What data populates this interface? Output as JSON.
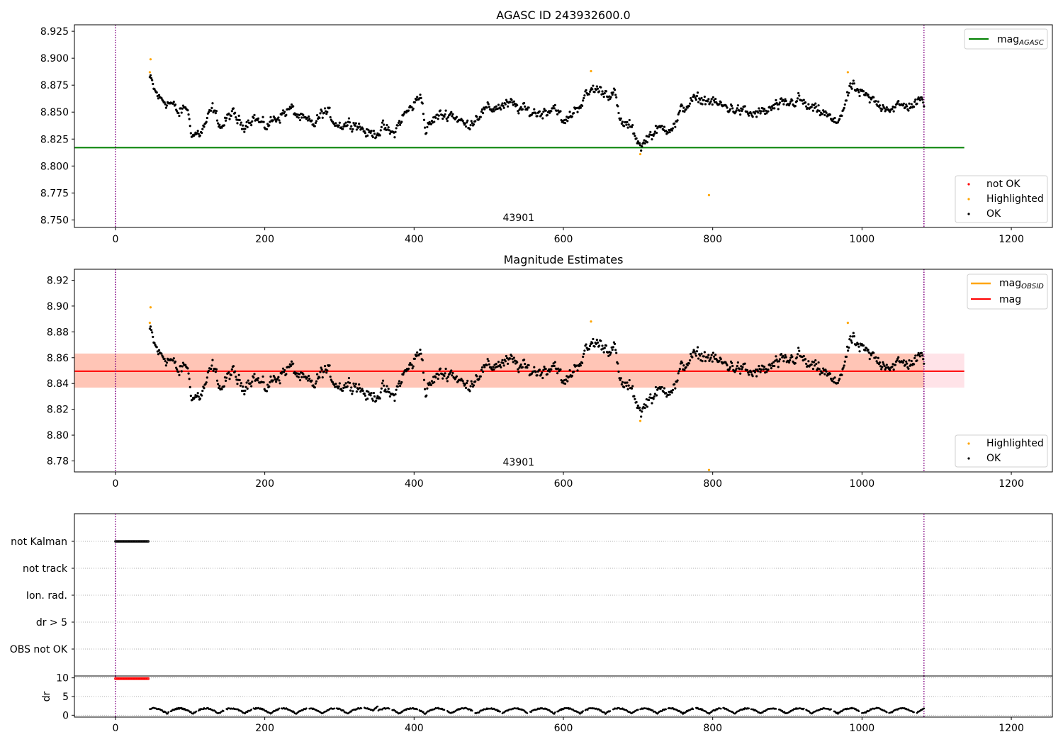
{
  "chart_data": [
    {
      "type": "scatter",
      "title": "AGASC ID 243932600.0",
      "xlim": [
        -55,
        1255
      ],
      "ylim": [
        8.743,
        8.931
      ],
      "x_ticks": [
        "0",
        "200",
        "400",
        "600",
        "800",
        "1000",
        "1200"
      ],
      "y_ticks": [
        "8.750",
        "8.775",
        "8.800",
        "8.825",
        "8.850",
        "8.875",
        "8.900",
        "8.925"
      ],
      "obsid_label": "43901",
      "obsid_x": 540,
      "vlines_x": [
        0,
        1083
      ],
      "mag_agasc": 8.817,
      "mag_agasc_xrange": [
        -55,
        1137
      ],
      "legend_upper": [
        "mag",
        "AGASC"
      ],
      "legend_lower": [
        "not OK",
        "Highlighted",
        "OK"
      ],
      "highlighted": [
        [
          46,
          8.887
        ],
        [
          47,
          8.899
        ],
        [
          637,
          8.888
        ],
        [
          703,
          8.811
        ],
        [
          795,
          8.773
        ],
        [
          981,
          8.887
        ]
      ],
      "ok_series": {
        "x_range": [
          46,
          1083
        ],
        "n": 1000,
        "segments": [
          [
            46,
            8.882
          ],
          [
            52,
            8.87
          ],
          [
            60,
            8.862
          ],
          [
            75,
            8.858
          ],
          [
            85,
            8.848
          ],
          [
            95,
            8.856
          ],
          [
            103,
            8.829
          ],
          [
            115,
            8.831
          ],
          [
            130,
            8.853
          ],
          [
            142,
            8.836
          ],
          [
            155,
            8.849
          ],
          [
            170,
            8.838
          ],
          [
            185,
            8.846
          ],
          [
            200,
            8.836
          ],
          [
            215,
            8.845
          ],
          [
            235,
            8.853
          ],
          [
            250,
            8.843
          ],
          [
            265,
            8.838
          ],
          [
            280,
            8.851
          ],
          [
            300,
            8.838
          ],
          [
            320,
            8.841
          ],
          [
            340,
            8.829
          ],
          [
            360,
            8.835
          ],
          [
            372,
            8.829
          ],
          [
            385,
            8.846
          ],
          [
            400,
            8.857
          ],
          [
            410,
            8.868
          ],
          [
            415,
            8.832
          ],
          [
            430,
            8.846
          ],
          [
            450,
            8.849
          ],
          [
            470,
            8.837
          ],
          [
            490,
            8.85
          ],
          [
            510,
            8.855
          ],
          [
            530,
            8.857
          ],
          [
            550,
            8.851
          ],
          [
            570,
            8.849
          ],
          [
            590,
            8.856
          ],
          [
            600,
            8.838
          ],
          [
            615,
            8.852
          ],
          [
            630,
            8.864
          ],
          [
            640,
            8.872
          ],
          [
            655,
            8.869
          ],
          [
            670,
            8.866
          ],
          [
            675,
            8.841
          ],
          [
            690,
            8.836
          ],
          [
            705,
            8.818
          ],
          [
            715,
            8.829
          ],
          [
            730,
            8.834
          ],
          [
            750,
            8.838
          ],
          [
            757,
            8.85
          ],
          [
            770,
            8.86
          ],
          [
            790,
            8.862
          ],
          [
            810,
            8.856
          ],
          [
            830,
            8.853
          ],
          [
            850,
            8.848
          ],
          [
            870,
            8.85
          ],
          [
            885,
            8.855
          ],
          [
            900,
            8.857
          ],
          [
            915,
            8.862
          ],
          [
            930,
            8.853
          ],
          [
            950,
            8.849
          ],
          [
            965,
            8.838
          ],
          [
            980,
            8.862
          ],
          [
            985,
            8.874
          ],
          [
            1000,
            8.866
          ],
          [
            1020,
            8.858
          ],
          [
            1040,
            8.854
          ],
          [
            1060,
            8.856
          ],
          [
            1083,
            8.86
          ]
        ]
      }
    },
    {
      "type": "scatter",
      "title": "Magnitude Estimates",
      "xlim": [
        -55,
        1255
      ],
      "ylim": [
        8.7715,
        8.9285
      ],
      "x_ticks": [
        "0",
        "200",
        "400",
        "600",
        "800",
        "1000",
        "1200"
      ],
      "y_ticks": [
        "8.78",
        "8.80",
        "8.82",
        "8.84",
        "8.86",
        "8.88",
        "8.90",
        "8.92"
      ],
      "obsid_label": "43901",
      "obsid_x": 540,
      "vlines_x": [
        0,
        1083
      ],
      "mag": 8.8495,
      "mag_band": [
        8.8368,
        8.8632
      ],
      "mag_obsid": 8.8495,
      "band_xrange": [
        -55,
        1137
      ],
      "obsid_xrange": [
        -55,
        1083
      ],
      "legend_upper": [
        [
          "mag",
          "OBSID"
        ],
        [
          "mag",
          ""
        ]
      ],
      "legend_lower": [
        "Highlighted",
        "OK"
      ],
      "highlighted": [
        [
          46,
          8.887
        ],
        [
          47,
          8.899
        ],
        [
          637,
          8.888
        ],
        [
          703,
          8.811
        ],
        [
          795,
          8.773
        ],
        [
          981,
          8.887
        ]
      ]
    },
    {
      "type": "scatter",
      "title": "",
      "xlim": [
        -55,
        1255
      ],
      "categories": [
        "not Kalman",
        "not track",
        "Ion. rad.",
        "dr > 5",
        "OBS not OK"
      ],
      "not_kalman_xrange": [
        0,
        45
      ],
      "vlines_x": [
        0,
        1083
      ]
    },
    {
      "type": "scatter",
      "title": "",
      "ylabel": "dr",
      "xlim": [
        -55,
        1255
      ],
      "ylim": [
        -0.5,
        10.5
      ],
      "y_ticks": [
        "0",
        "5",
        "10"
      ],
      "x_ticks": [
        "0",
        "200",
        "400",
        "600",
        "800",
        "1000",
        "1200"
      ],
      "red_x_range": [
        0,
        45
      ],
      "red_y": 9.8,
      "vlines_x": [
        0,
        1083
      ]
    }
  ],
  "colors": {
    "ok": "#000000",
    "highlighted": "#ffa500",
    "not_ok": "#ff0000",
    "mag_agasc": "#008000",
    "mag": "#ff0000",
    "mag_obsid": "#ffa500",
    "band": "#ffc0cb",
    "band_alpha": 0.45,
    "obsid_band": "#ffa07a",
    "vline": "#800080"
  }
}
